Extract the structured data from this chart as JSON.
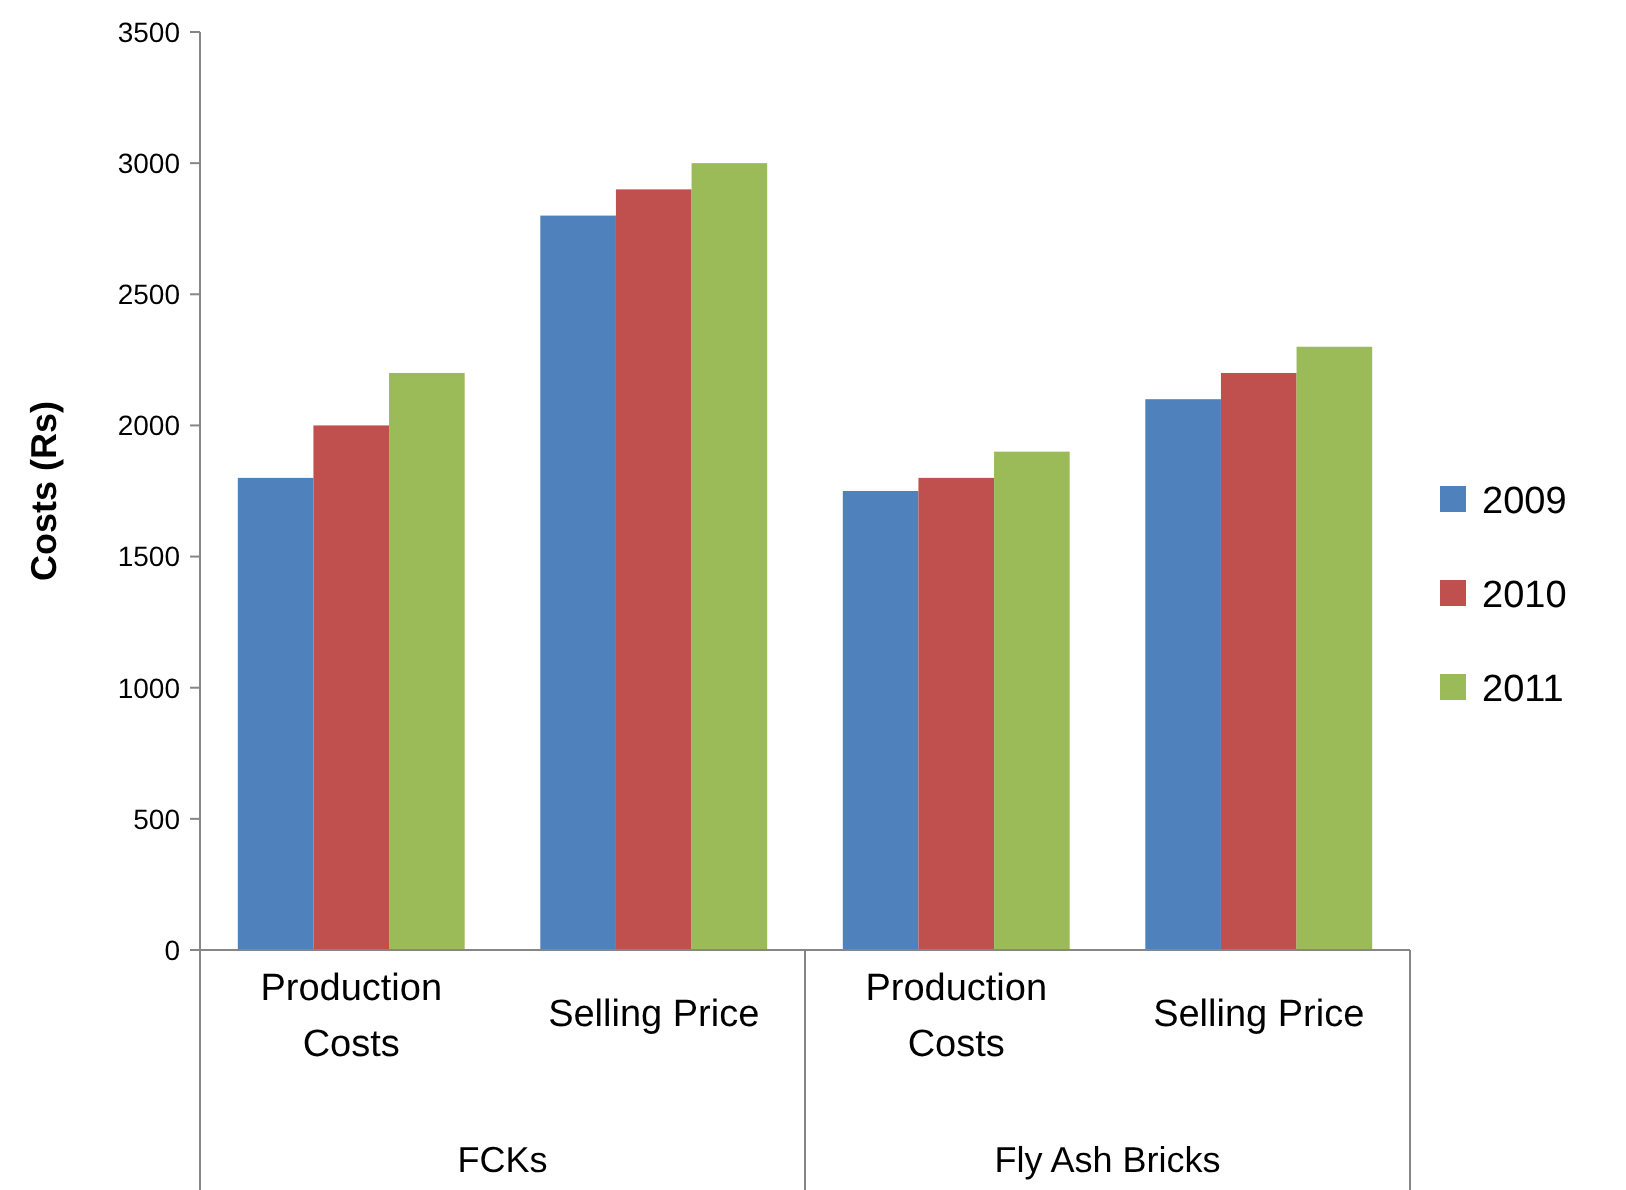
{
  "chart_data": {
    "type": "bar",
    "ylabel": "Costs (Rs)",
    "categories": [
      "Production Costs",
      "Selling Price",
      "Production Costs",
      "Selling Price"
    ],
    "annotations": [
      "FCKs",
      "Fly Ash Bricks"
    ],
    "series": [
      {
        "name": "2009",
        "color": "#4f81bd",
        "values": [
          1800,
          2800,
          1750,
          2100
        ]
      },
      {
        "name": "2010",
        "color": "#c0504d",
        "values": [
          2000,
          2900,
          1800,
          2200
        ]
      },
      {
        "name": "2011",
        "color": "#9bbb59",
        "values": [
          2200,
          3000,
          1900,
          2300
        ]
      }
    ],
    "ylim": [
      0,
      3500
    ],
    "yticks": [
      0,
      500,
      1000,
      1500,
      2000,
      2500,
      3000,
      3500
    ],
    "legend": "right"
  }
}
